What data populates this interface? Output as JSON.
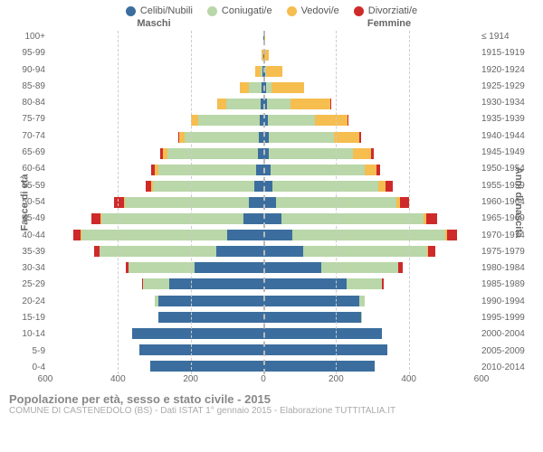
{
  "legend": [
    {
      "label": "Celibi/Nubili",
      "color": "#3b6e9e"
    },
    {
      "label": "Coniugati/e",
      "color": "#b9d7a8"
    },
    {
      "label": "Vedovi/e",
      "color": "#f6bd4f"
    },
    {
      "label": "Divorziati/e",
      "color": "#cf2a2a"
    }
  ],
  "heading_left": "Maschi",
  "heading_right": "Femmine",
  "ylabel_left": "Fasce di età",
  "ylabel_right": "Anni di nascita",
  "footer_title": "Popolazione per età, sesso e stato civile - 2015",
  "footer_sub": "COMUNE DI CASTENEDOLO (BS) - Dati ISTAT 1° gennaio 2015 - Elaborazione TUTTITALIA.IT",
  "xmax": 600,
  "xticks": [
    600,
    400,
    200,
    0,
    200,
    400,
    600
  ],
  "colors": {
    "single": "#3b6e9e",
    "married": "#b9d7a8",
    "widowed": "#f6bd4f",
    "divorced": "#cf2a2a",
    "grid": "#cccccc",
    "center": "#bbbbbb",
    "bg": "#ffffff",
    "text": "#666666"
  },
  "age_labels": [
    "100+",
    "95-99",
    "90-94",
    "85-89",
    "80-84",
    "75-79",
    "70-74",
    "65-69",
    "60-64",
    "55-59",
    "50-54",
    "45-49",
    "40-44",
    "35-39",
    "30-34",
    "25-29",
    "20-24",
    "15-19",
    "10-14",
    "5-9",
    "0-4"
  ],
  "birth_labels": [
    "≤ 1914",
    "1915-1919",
    "1920-1924",
    "1925-1929",
    "1930-1934",
    "1935-1939",
    "1940-1944",
    "1945-1949",
    "1950-1954",
    "1955-1959",
    "1960-1964",
    "1965-1969",
    "1970-1974",
    "1975-1979",
    "1980-1984",
    "1985-1989",
    "1990-1994",
    "1995-1999",
    "2000-2004",
    "2005-2009",
    "2010-2014"
  ],
  "male": [
    {
      "single": 0,
      "married": 0,
      "widowed": 0,
      "divorced": 0
    },
    {
      "single": 0,
      "married": 0,
      "widowed": 5,
      "divorced": 0
    },
    {
      "single": 3,
      "married": 5,
      "widowed": 15,
      "divorced": 0
    },
    {
      "single": 5,
      "married": 35,
      "widowed": 25,
      "divorced": 0
    },
    {
      "single": 8,
      "married": 95,
      "widowed": 25,
      "divorced": 0
    },
    {
      "single": 10,
      "married": 170,
      "widowed": 20,
      "divorced": 0
    },
    {
      "single": 12,
      "married": 205,
      "widowed": 15,
      "divorced": 3
    },
    {
      "single": 15,
      "married": 250,
      "widowed": 12,
      "divorced": 8
    },
    {
      "single": 20,
      "married": 270,
      "widowed": 8,
      "divorced": 12
    },
    {
      "single": 25,
      "married": 280,
      "widowed": 5,
      "divorced": 15
    },
    {
      "single": 40,
      "married": 340,
      "widowed": 4,
      "divorced": 28
    },
    {
      "single": 55,
      "married": 390,
      "widowed": 3,
      "divorced": 25
    },
    {
      "single": 100,
      "married": 400,
      "widowed": 2,
      "divorced": 22
    },
    {
      "single": 130,
      "married": 320,
      "widowed": 1,
      "divorced": 15
    },
    {
      "single": 190,
      "married": 180,
      "widowed": 0,
      "divorced": 8
    },
    {
      "single": 260,
      "married": 70,
      "widowed": 0,
      "divorced": 3
    },
    {
      "single": 290,
      "married": 8,
      "widowed": 0,
      "divorced": 0
    },
    {
      "single": 290,
      "married": 0,
      "widowed": 0,
      "divorced": 0
    },
    {
      "single": 360,
      "married": 0,
      "widowed": 0,
      "divorced": 0
    },
    {
      "single": 340,
      "married": 0,
      "widowed": 0,
      "divorced": 0
    },
    {
      "single": 310,
      "married": 0,
      "widowed": 0,
      "divorced": 0
    }
  ],
  "female": [
    {
      "single": 2,
      "married": 0,
      "widowed": 2,
      "divorced": 0
    },
    {
      "single": 2,
      "married": 1,
      "widowed": 12,
      "divorced": 0
    },
    {
      "single": 5,
      "married": 3,
      "widowed": 45,
      "divorced": 0
    },
    {
      "single": 8,
      "married": 15,
      "widowed": 90,
      "divorced": 0
    },
    {
      "single": 10,
      "married": 65,
      "widowed": 110,
      "divorced": 2
    },
    {
      "single": 12,
      "married": 130,
      "widowed": 90,
      "divorced": 3
    },
    {
      "single": 14,
      "married": 180,
      "widowed": 70,
      "divorced": 5
    },
    {
      "single": 16,
      "married": 230,
      "widowed": 50,
      "divorced": 8
    },
    {
      "single": 20,
      "married": 260,
      "widowed": 30,
      "divorced": 12
    },
    {
      "single": 25,
      "married": 290,
      "widowed": 20,
      "divorced": 20
    },
    {
      "single": 35,
      "married": 330,
      "widowed": 12,
      "divorced": 25
    },
    {
      "single": 50,
      "married": 390,
      "widowed": 8,
      "divorced": 30
    },
    {
      "single": 80,
      "married": 420,
      "widowed": 5,
      "divorced": 28
    },
    {
      "single": 110,
      "married": 340,
      "widowed": 3,
      "divorced": 20
    },
    {
      "single": 160,
      "married": 210,
      "widowed": 1,
      "divorced": 12
    },
    {
      "single": 230,
      "married": 95,
      "widowed": 0,
      "divorced": 5
    },
    {
      "single": 265,
      "married": 15,
      "widowed": 0,
      "divorced": 0
    },
    {
      "single": 270,
      "married": 2,
      "widowed": 0,
      "divorced": 0
    },
    {
      "single": 325,
      "married": 0,
      "widowed": 0,
      "divorced": 0
    },
    {
      "single": 340,
      "married": 0,
      "widowed": 0,
      "divorced": 0
    },
    {
      "single": 305,
      "married": 0,
      "widowed": 0,
      "divorced": 0
    }
  ]
}
